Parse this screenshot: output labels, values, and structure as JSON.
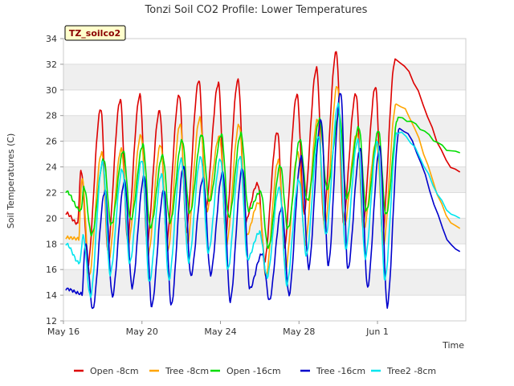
{
  "chart_data": {
    "type": "line",
    "title": "Tonzi Soil CO2 Profile: Lower Temperatures",
    "xlabel": "Time",
    "ylabel": "Soil Temperatures (C)",
    "ylim": [
      12,
      34
    ],
    "xlim": [
      0,
      20.5
    ],
    "grid": "horizontal bands",
    "legend_position": "bottom",
    "yticks": [
      12,
      14,
      16,
      18,
      20,
      22,
      24,
      26,
      28,
      30,
      32,
      34
    ],
    "xticks": [
      {
        "x": 0,
        "label": "May 16"
      },
      {
        "x": 4,
        "label": "May 20"
      },
      {
        "x": 8,
        "label": "May 24"
      },
      {
        "x": 12,
        "label": "May 28"
      },
      {
        "x": 16,
        "label": "Jun 1"
      }
    ],
    "annotation": "TZ_soilco2",
    "series": [
      {
        "name": "Open -8cm",
        "color": "#dd0000",
        "peak_phase": 0.6,
        "sharpness": 2.0,
        "start": 20.4,
        "end": 23.6,
        "peaks": [
          23.7,
          28.5,
          29.2,
          29.6,
          28.4,
          29.6,
          30.7,
          30.5,
          30.8,
          22.7,
          26.7,
          29.6,
          31.7,
          33.0,
          29.7,
          30.2,
          32.3
        ],
        "troughs": [
          19.6,
          16.3,
          17.4,
          18.2,
          17.8,
          17.9,
          18.8,
          20.7,
          18.6,
          19.6,
          16.6,
          17.6,
          20.3,
          19.7,
          19.6,
          19.3,
          18.5
        ]
      },
      {
        "name": "Tree -8cm",
        "color": "#ffa500",
        "peak_phase": 0.65,
        "sharpness": 1.6,
        "start": 18.5,
        "end": 19.2,
        "peaks": [
          23.1,
          25.1,
          25.4,
          26.5,
          25.7,
          27.3,
          27.8,
          26.4,
          27.3,
          21.2,
          24.5,
          25.1,
          27.7,
          30.3,
          26.6,
          26.0,
          28.9
        ],
        "troughs": [
          18.4,
          15.5,
          16.8,
          18.0,
          17.1,
          17.4,
          18.0,
          20.6,
          18.0,
          18.6,
          15.4,
          16.0,
          18.0,
          19.2,
          19.4,
          19.2,
          18.0
        ]
      },
      {
        "name": "Open -16cm",
        "color": "#00dd00",
        "peak_phase": 0.75,
        "sharpness": 1.0,
        "start": 22.1,
        "end": 25.1,
        "peaks": [
          22.4,
          24.6,
          25.2,
          25.7,
          24.9,
          26.1,
          26.5,
          26.5,
          26.6,
          22.1,
          24.1,
          26.1,
          27.7,
          28.2,
          27.1,
          26.8,
          27.8
        ],
        "troughs": [
          20.6,
          18.7,
          19.5,
          19.9,
          19.3,
          19.7,
          20.4,
          21.3,
          20.1,
          20.6,
          17.7,
          19.2,
          21.4,
          22.3,
          21.6,
          20.6,
          20.3
        ]
      },
      {
        "name": "Tree -16cm",
        "color": "#0000cc",
        "peak_phase": 0.82,
        "sharpness": 1.4,
        "start": 14.5,
        "end": 17.4,
        "peaks": [
          18.0,
          22.1,
          22.9,
          23.3,
          22.2,
          24.0,
          23.1,
          23.6,
          23.9,
          17.2,
          20.8,
          24.8,
          27.7,
          29.8,
          25.4,
          25.5,
          27.0
        ],
        "troughs": [
          14.1,
          12.9,
          13.9,
          14.6,
          13.1,
          13.2,
          15.5,
          15.6,
          13.5,
          14.5,
          13.6,
          14.0,
          16.1,
          16.3,
          16.0,
          14.6,
          13.1
        ]
      },
      {
        "name": "Tree2 -8cm",
        "color": "#00e5ee",
        "peak_phase": 0.7,
        "sharpness": 1.3,
        "start": 18.0,
        "end": 20.0,
        "peaks": [
          18.6,
          24.4,
          23.8,
          24.5,
          23.4,
          24.6,
          24.8,
          24.6,
          24.8,
          18.9,
          22.4,
          23.0,
          26.4,
          28.9,
          26.1,
          26.0,
          26.7
        ],
        "troughs": [
          16.5,
          13.9,
          15.6,
          16.5,
          15.0,
          15.2,
          16.6,
          17.3,
          16.0,
          16.8,
          15.4,
          14.8,
          17.1,
          18.7,
          17.6,
          16.9,
          15.2
        ]
      }
    ]
  }
}
